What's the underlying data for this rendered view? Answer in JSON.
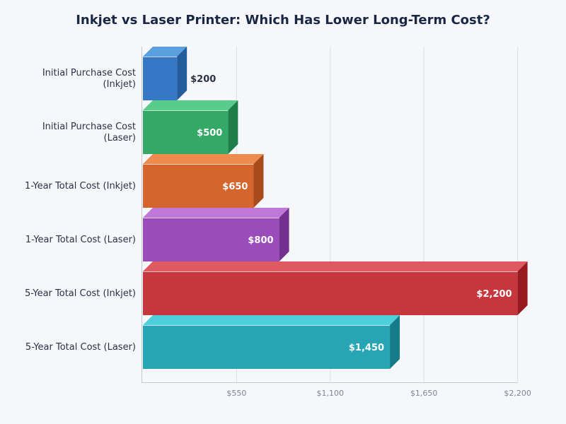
{
  "chart_data": {
    "type": "bar",
    "orientation": "horizontal",
    "title": "Inkjet vs Laser Printer: Which Has Lower Long-Term Cost?",
    "categories": [
      [
        "Initial Purchase Cost",
        "(Inkjet)"
      ],
      [
        "Initial Purchase Cost",
        "(Laser)"
      ],
      [
        "1-Year Total Cost (Inkjet)"
      ],
      [
        "1-Year Total Cost (Laser)"
      ],
      [
        "5-Year Total Cost (Inkjet)"
      ],
      [
        "5-Year Total Cost (Laser)"
      ]
    ],
    "values": [
      200,
      500,
      650,
      800,
      2200,
      1450
    ],
    "data_labels": [
      "$200",
      "$500",
      "$650",
      "$800",
      "$2,200",
      "$1,450"
    ],
    "colors": [
      "#3478c6",
      "#34a866",
      "#d4652c",
      "#9a4cbb",
      "#c5373d",
      "#27a5b5"
    ],
    "top_colors": [
      "#5aa0e0",
      "#58cc88",
      "#ee8c50",
      "#c077d8",
      "#df5a60",
      "#4ecfdc"
    ],
    "side_colors": [
      "#245c9c",
      "#1f7d47",
      "#a84a1a",
      "#73308f",
      "#961c22",
      "#167b88"
    ],
    "xlim": [
      0,
      2200
    ],
    "xticks": [
      550,
      1100,
      1650,
      2200
    ],
    "xtick_labels": [
      "$550",
      "$1,100",
      "$1,650",
      "$2,200"
    ],
    "grid": true,
    "style": "3d"
  }
}
